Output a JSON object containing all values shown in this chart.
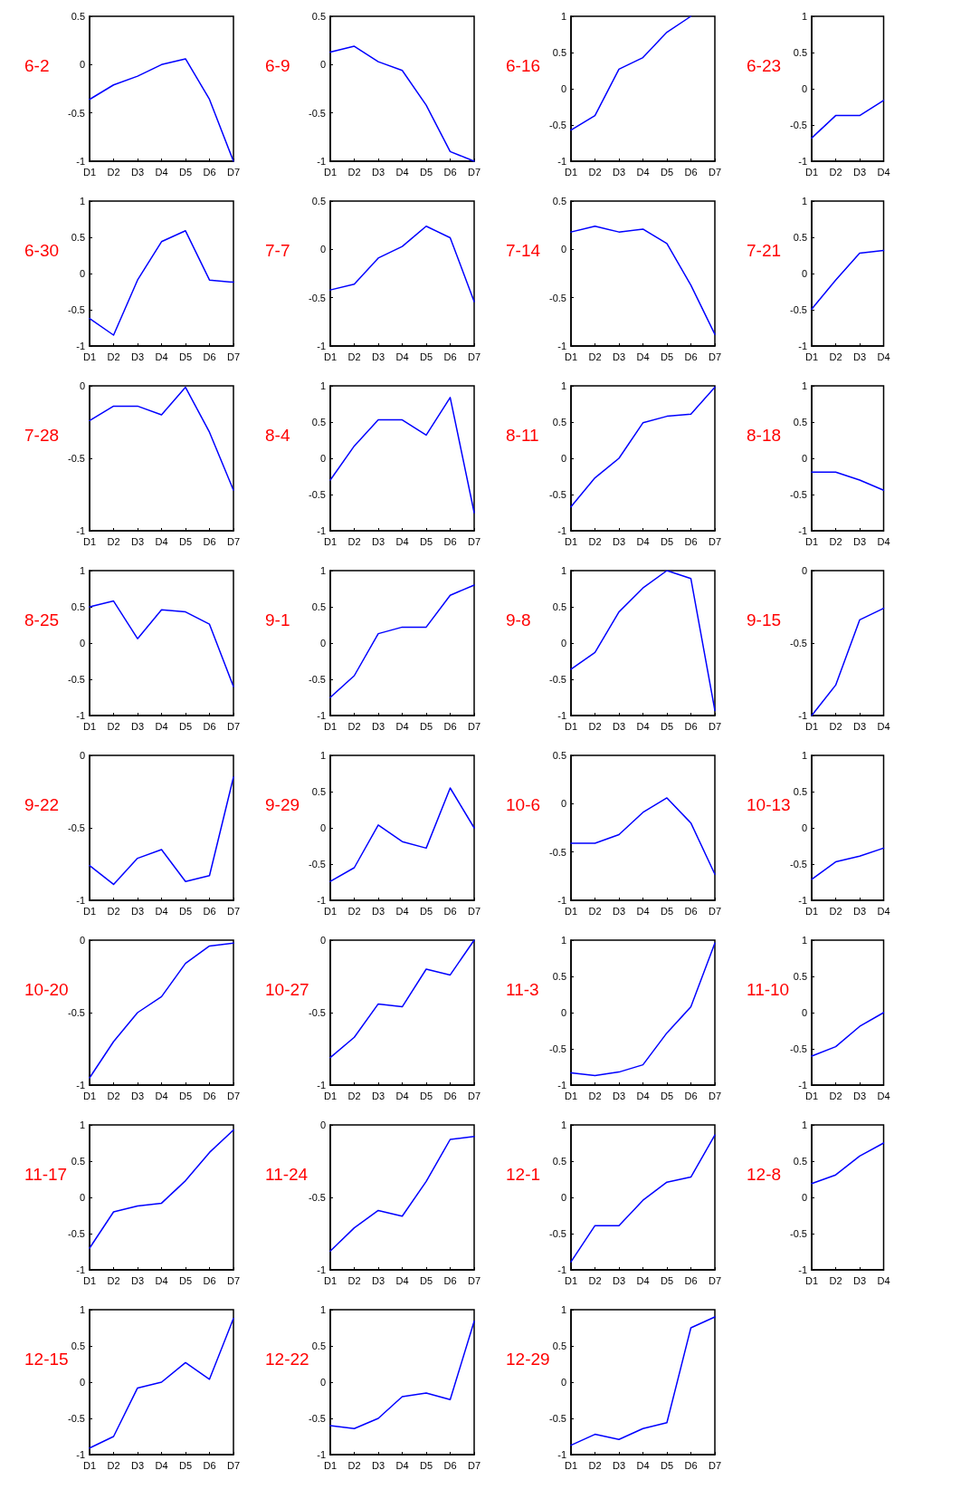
{
  "chart_data": [
    {
      "type": "line",
      "title": "6-2",
      "categories": [
        "D1",
        "D2",
        "D3",
        "D4",
        "D5",
        "D6",
        "D7"
      ],
      "series": [
        {
          "color": "#0000ff",
          "values": [
            -0.36,
            -0.21,
            -0.12,
            0.0,
            0.06,
            -0.36,
            -1.0
          ]
        }
      ],
      "ylim": [
        -1,
        0.5
      ],
      "yticks": [
        -1,
        -0.5,
        0,
        0.5
      ],
      "marker": "none"
    },
    {
      "type": "line",
      "title": "6-9",
      "categories": [
        "D1",
        "D2",
        "D3",
        "D4",
        "D5",
        "D6",
        "D7"
      ],
      "series": [
        {
          "color": "#0000ff",
          "values": [
            0.13,
            0.19,
            0.03,
            -0.06,
            -0.42,
            -0.9,
            -1.0
          ]
        }
      ],
      "ylim": [
        -1,
        0.5
      ],
      "yticks": [
        -1,
        -0.5,
        0,
        0.5
      ],
      "marker": "none"
    },
    {
      "type": "line",
      "title": "6-16",
      "categories": [
        "D1",
        "D2",
        "D3",
        "D4",
        "D5",
        "D6",
        "D7"
      ],
      "series": [
        {
          "color": "#0000ff",
          "values": [
            -0.57,
            -0.37,
            0.27,
            0.43,
            0.78,
            1.0,
            null
          ]
        }
      ],
      "ylim": [
        -1,
        1
      ],
      "yticks": [
        -1,
        -0.5,
        0,
        0.5,
        1
      ],
      "marker": "none"
    },
    {
      "type": "line",
      "title": "6-23",
      "categories": [
        "D1",
        "D2",
        "D3",
        "D4"
      ],
      "series": [
        {
          "color": "#0000ff",
          "values": [
            -0.68,
            -0.37,
            -0.37,
            -0.16
          ]
        }
      ],
      "ylim": [
        -1,
        1
      ],
      "yticks": [
        -1,
        -0.5,
        0,
        0.5,
        1
      ],
      "marker": "none"
    },
    {
      "type": "line",
      "title": "6-30",
      "categories": [
        "D1",
        "D2",
        "D3",
        "D4",
        "D5",
        "D6",
        "D7"
      ],
      "series": [
        {
          "color": "#0000ff",
          "values": [
            -0.62,
            -0.85,
            -0.09,
            0.44,
            0.59,
            -0.09,
            -0.12
          ]
        }
      ],
      "ylim": [
        -1,
        1
      ],
      "yticks": [
        -1,
        -0.5,
        0,
        0.5,
        1
      ],
      "marker": "none"
    },
    {
      "type": "line",
      "title": "7-7",
      "categories": [
        "D1",
        "D2",
        "D3",
        "D4",
        "D5",
        "D6",
        "D7"
      ],
      "series": [
        {
          "color": "#0000ff",
          "values": [
            -0.42,
            -0.36,
            -0.09,
            0.03,
            0.24,
            0.12,
            -0.54
          ]
        }
      ],
      "ylim": [
        -1,
        0.5
      ],
      "yticks": [
        -1,
        -0.5,
        0,
        0.5
      ],
      "marker": "none"
    },
    {
      "type": "line",
      "title": "7-14",
      "categories": [
        "D1",
        "D2",
        "D3",
        "D4",
        "D5",
        "D6",
        "D7"
      ],
      "series": [
        {
          "color": "#0000ff",
          "values": [
            0.18,
            0.24,
            0.18,
            0.21,
            0.06,
            -0.37,
            -0.88
          ]
        }
      ],
      "ylim": [
        -1,
        0.5
      ],
      "yticks": [
        -1,
        -0.5,
        0,
        0.5
      ],
      "marker": "none"
    },
    {
      "type": "line",
      "title": "7-21",
      "categories": [
        "D1",
        "D2",
        "D3",
        "D4"
      ],
      "series": [
        {
          "color": "#0000ff",
          "values": [
            -0.49,
            -0.09,
            0.28,
            0.32
          ]
        }
      ],
      "ylim": [
        -1,
        1
      ],
      "yticks": [
        -1,
        -0.5,
        0,
        0.5,
        1
      ],
      "marker": "none"
    },
    {
      "type": "line",
      "title": "7-28",
      "categories": [
        "D1",
        "D2",
        "D3",
        "D4",
        "D5",
        "D6",
        "D7"
      ],
      "series": [
        {
          "color": "#0000ff",
          "values": [
            -0.24,
            -0.14,
            -0.14,
            -0.2,
            -0.01,
            -0.32,
            -0.72
          ]
        }
      ],
      "ylim": [
        -1,
        0
      ],
      "yticks": [
        -1,
        -0.5,
        0
      ],
      "marker": "none"
    },
    {
      "type": "line",
      "title": "8-4",
      "categories": [
        "D1",
        "D2",
        "D3",
        "D4",
        "D5",
        "D6",
        "D7"
      ],
      "series": [
        {
          "color": "#0000ff",
          "values": [
            -0.3,
            0.17,
            0.53,
            0.53,
            0.32,
            0.84,
            -0.75
          ]
        }
      ],
      "ylim": [
        -1,
        1
      ],
      "yticks": [
        -1,
        -0.5,
        0,
        0.5,
        1
      ],
      "marker": "none"
    },
    {
      "type": "line",
      "title": "8-11",
      "categories": [
        "D1",
        "D2",
        "D3",
        "D4",
        "D5",
        "D6",
        "D7"
      ],
      "series": [
        {
          "color": "#0000ff",
          "values": [
            -0.67,
            -0.27,
            0.0,
            0.49,
            0.58,
            0.61,
            0.98
          ]
        }
      ],
      "ylim": [
        -1,
        1
      ],
      "yticks": [
        -1,
        -0.5,
        0,
        0.5,
        1
      ],
      "marker": "none"
    },
    {
      "type": "line",
      "title": "8-18",
      "categories": [
        "D1",
        "D2",
        "D3",
        "D4"
      ],
      "series": [
        {
          "color": "#0000ff",
          "values": [
            -0.19,
            -0.19,
            -0.3,
            -0.44
          ]
        }
      ],
      "ylim": [
        -1,
        1
      ],
      "yticks": [
        -1,
        -0.5,
        0,
        0.5,
        1
      ],
      "marker": "none"
    },
    {
      "type": "line",
      "title": "8-25",
      "categories": [
        "D1",
        "D2",
        "D3",
        "D4",
        "D5",
        "D6",
        "D7"
      ],
      "series": [
        {
          "color": "#0000ff",
          "values": [
            0.5,
            0.58,
            0.06,
            0.46,
            0.43,
            0.26,
            -0.6
          ]
        }
      ],
      "ylim": [
        -1,
        1
      ],
      "yticks": [
        -1,
        -0.5,
        0,
        0.5,
        1
      ],
      "marker": "none"
    },
    {
      "type": "line",
      "title": "9-1",
      "categories": [
        "D1",
        "D2",
        "D3",
        "D4",
        "D5",
        "D6",
        "D7"
      ],
      "series": [
        {
          "color": "#0000ff",
          "values": [
            -0.75,
            -0.45,
            0.13,
            0.22,
            0.22,
            0.66,
            0.8
          ]
        }
      ],
      "ylim": [
        -1,
        1
      ],
      "yticks": [
        -1,
        -0.5,
        0,
        0.5,
        1
      ],
      "marker": "none"
    },
    {
      "type": "line",
      "title": "9-8",
      "categories": [
        "D1",
        "D2",
        "D3",
        "D4",
        "D5",
        "D6",
        "D7"
      ],
      "series": [
        {
          "color": "#0000ff",
          "values": [
            -0.36,
            -0.13,
            0.43,
            0.76,
            1.0,
            0.89,
            -0.93
          ]
        }
      ],
      "ylim": [
        -1,
        1
      ],
      "yticks": [
        -1,
        -0.5,
        0,
        0.5,
        1
      ],
      "marker": "none"
    },
    {
      "type": "line",
      "title": "9-15",
      "categories": [
        "D1",
        "D2",
        "D3",
        "D4"
      ],
      "series": [
        {
          "color": "#0000ff",
          "values": [
            -1.0,
            -0.79,
            -0.34,
            -0.26
          ]
        }
      ],
      "ylim": [
        -1,
        0
      ],
      "yticks": [
        -1,
        -0.5,
        0
      ],
      "marker": "none"
    },
    {
      "type": "line",
      "title": "9-22",
      "categories": [
        "D1",
        "D2",
        "D3",
        "D4",
        "D5",
        "D6",
        "D7"
      ],
      "series": [
        {
          "color": "#0000ff",
          "values": [
            -0.76,
            -0.89,
            -0.71,
            -0.65,
            -0.87,
            -0.83,
            -0.15
          ]
        }
      ],
      "ylim": [
        -1,
        0
      ],
      "yticks": [
        -1,
        -0.5,
        0
      ],
      "marker": "none"
    },
    {
      "type": "line",
      "title": "9-29",
      "categories": [
        "D1",
        "D2",
        "D3",
        "D4",
        "D5",
        "D6",
        "D7"
      ],
      "series": [
        {
          "color": "#0000ff",
          "values": [
            -0.74,
            -0.55,
            0.04,
            -0.19,
            -0.28,
            0.55,
            0.0
          ]
        }
      ],
      "ylim": [
        -1,
        1
      ],
      "yticks": [
        -1,
        -0.5,
        0,
        0.5,
        1
      ],
      "marker": "none"
    },
    {
      "type": "line",
      "title": "10-6",
      "categories": [
        "D1",
        "D2",
        "D3",
        "D4",
        "D5",
        "D6",
        "D7"
      ],
      "series": [
        {
          "color": "#0000ff",
          "values": [
            -0.41,
            -0.41,
            -0.32,
            -0.09,
            0.06,
            -0.2,
            -0.73
          ]
        }
      ],
      "ylim": [
        -1,
        0.5
      ],
      "yticks": [
        -1,
        -0.5,
        0,
        0.5
      ],
      "marker": "none"
    },
    {
      "type": "line",
      "title": "10-13",
      "categories": [
        "D1",
        "D2",
        "D3",
        "D4"
      ],
      "series": [
        {
          "color": "#0000ff",
          "values": [
            -0.71,
            -0.47,
            -0.39,
            -0.28
          ]
        }
      ],
      "ylim": [
        -1,
        1
      ],
      "yticks": [
        -1,
        -0.5,
        0,
        0.5,
        1
      ],
      "marker": "none"
    },
    {
      "type": "line",
      "title": "10-20",
      "categories": [
        "D1",
        "D2",
        "D3",
        "D4",
        "D5",
        "D6",
        "D7"
      ],
      "series": [
        {
          "color": "#0000ff",
          "values": [
            -0.95,
            -0.7,
            -0.5,
            -0.39,
            -0.16,
            -0.04,
            -0.02
          ]
        }
      ],
      "ylim": [
        -1,
        0
      ],
      "yticks": [
        -1,
        -0.5,
        0
      ],
      "marker": "none"
    },
    {
      "type": "line",
      "title": "10-27",
      "categories": [
        "D1",
        "D2",
        "D3",
        "D4",
        "D5",
        "D6",
        "D7"
      ],
      "series": [
        {
          "color": "#0000ff",
          "values": [
            -0.81,
            -0.67,
            -0.44,
            -0.46,
            -0.2,
            -0.24,
            0.0
          ]
        }
      ],
      "ylim": [
        -1,
        0
      ],
      "yticks": [
        -1,
        -0.5,
        0
      ],
      "marker": "none"
    },
    {
      "type": "line",
      "title": "11-3",
      "categories": [
        "D1",
        "D2",
        "D3",
        "D4",
        "D5",
        "D6",
        "D7"
      ],
      "series": [
        {
          "color": "#0000ff",
          "values": [
            -0.83,
            -0.87,
            -0.82,
            -0.72,
            -0.28,
            0.08,
            0.96
          ]
        }
      ],
      "ylim": [
        -1,
        1
      ],
      "yticks": [
        -1,
        -0.5,
        0,
        0.5,
        1
      ],
      "marker": "none"
    },
    {
      "type": "line",
      "title": "11-10",
      "categories": [
        "D1",
        "D2",
        "D3",
        "D4"
      ],
      "series": [
        {
          "color": "#0000ff",
          "values": [
            -0.6,
            -0.47,
            -0.19,
            0.0
          ]
        }
      ],
      "ylim": [
        -1,
        1
      ],
      "yticks": [
        -1,
        -0.5,
        0,
        0.5,
        1
      ],
      "marker": "none"
    },
    {
      "type": "line",
      "title": "11-17",
      "categories": [
        "D1",
        "D2",
        "D3",
        "D4",
        "D5",
        "D6",
        "D7"
      ],
      "series": [
        {
          "color": "#0000ff",
          "values": [
            -0.7,
            -0.2,
            -0.12,
            -0.08,
            0.23,
            0.62,
            0.93
          ]
        }
      ],
      "ylim": [
        -1,
        1
      ],
      "yticks": [
        -1,
        -0.5,
        0,
        0.5,
        1
      ],
      "marker": "none"
    },
    {
      "type": "line",
      "title": "11-24",
      "categories": [
        "D1",
        "D2",
        "D3",
        "D4",
        "D5",
        "D6",
        "D7"
      ],
      "series": [
        {
          "color": "#0000ff",
          "values": [
            -0.87,
            -0.71,
            -0.59,
            -0.63,
            -0.39,
            -0.1,
            -0.08
          ]
        }
      ],
      "ylim": [
        -1,
        0
      ],
      "yticks": [
        -1,
        -0.5,
        0
      ],
      "marker": "none"
    },
    {
      "type": "line",
      "title": "12-1",
      "categories": [
        "D1",
        "D2",
        "D3",
        "D4",
        "D5",
        "D6",
        "D7"
      ],
      "series": [
        {
          "color": "#0000ff",
          "values": [
            -0.89,
            -0.39,
            -0.39,
            -0.04,
            0.21,
            0.28,
            0.86
          ]
        }
      ],
      "ylim": [
        -1,
        1
      ],
      "yticks": [
        -1,
        -0.5,
        0,
        0.5,
        1
      ],
      "marker": "none"
    },
    {
      "type": "line",
      "title": "12-8",
      "categories": [
        "D1",
        "D2",
        "D3",
        "D4"
      ],
      "series": [
        {
          "color": "#0000ff",
          "values": [
            0.19,
            0.31,
            0.57,
            0.75
          ]
        }
      ],
      "ylim": [
        -1,
        1
      ],
      "yticks": [
        -1,
        -0.5,
        0,
        0.5,
        1
      ],
      "marker": "none"
    },
    {
      "type": "line",
      "title": "12-15",
      "categories": [
        "D1",
        "D2",
        "D3",
        "D4",
        "D5",
        "D6",
        "D7"
      ],
      "series": [
        {
          "color": "#0000ff",
          "values": [
            -0.91,
            -0.75,
            -0.08,
            0.0,
            0.27,
            0.04,
            0.88
          ]
        }
      ],
      "ylim": [
        -1,
        1
      ],
      "yticks": [
        -1,
        -0.5,
        0,
        0.5,
        1
      ],
      "marker": "none"
    },
    {
      "type": "line",
      "title": "12-22",
      "categories": [
        "D1",
        "D2",
        "D3",
        "D4",
        "D5",
        "D6",
        "D7"
      ],
      "series": [
        {
          "color": "#0000ff",
          "values": [
            -0.6,
            -0.64,
            -0.5,
            -0.2,
            -0.15,
            -0.24,
            0.84
          ]
        }
      ],
      "ylim": [
        -1,
        1
      ],
      "yticks": [
        -1,
        -0.5,
        0,
        0.5,
        1
      ],
      "marker": "none"
    },
    {
      "type": "line",
      "title": "12-29",
      "categories": [
        "D1",
        "D2",
        "D3",
        "D4",
        "D5",
        "D6",
        "D7"
      ],
      "series": [
        {
          "color": "#0000ff",
          "values": [
            -0.87,
            -0.72,
            -0.79,
            -0.64,
            -0.56,
            0.75,
            0.9
          ]
        }
      ],
      "ylim": [
        -1,
        1
      ],
      "yticks": [
        -1,
        -0.5,
        0,
        0.5,
        1
      ],
      "marker": "none"
    }
  ]
}
